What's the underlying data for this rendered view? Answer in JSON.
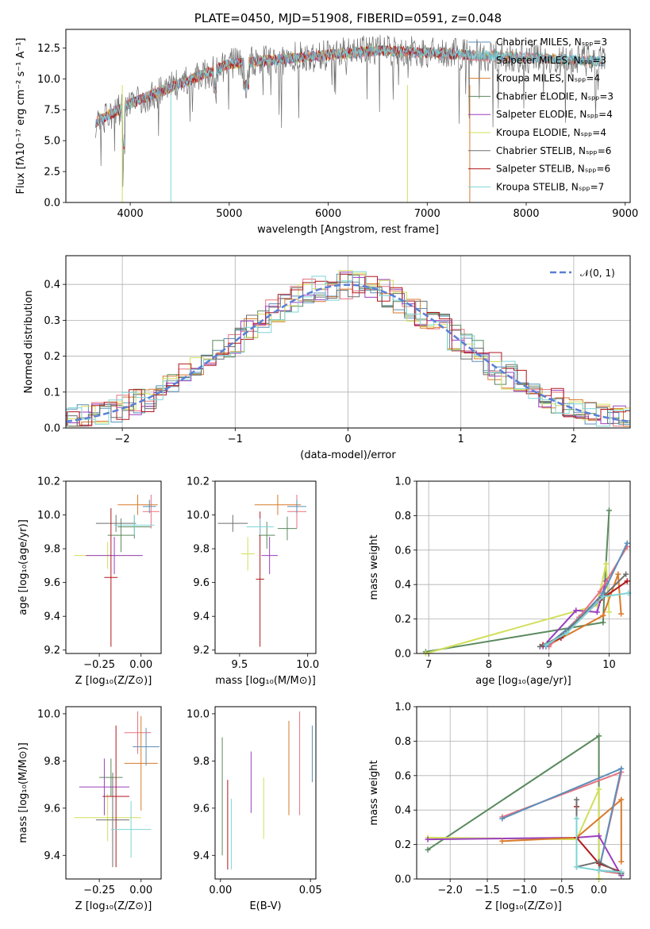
{
  "colors": {
    "c1": "#5b8fb9",
    "c2": "#e8727f",
    "c3": "#d97a2b",
    "c4": "#5a8a5e",
    "c5": "#9a3fbf",
    "c6": "#d2df5a",
    "c7": "#6e6e6e",
    "c8": "#b2161c",
    "c9": "#7ed4d6",
    "gauss": "#5a7fd6"
  },
  "chart_data": [
    {
      "id": "spectrum",
      "type": "line",
      "title": "PLATE=0450, MJD=51908, FIBERID=0591, z=0.048",
      "xlabel": "wavelength [Angstrom, rest frame]",
      "ylabel": "Flux [fλ10⁻¹⁷ erg cm⁻² s⁻¹ A⁻¹]",
      "xlim": [
        3350,
        9050
      ],
      "ylim": [
        0,
        14
      ],
      "xticks": [
        "4000",
        "5000",
        "6000",
        "7000",
        "8000",
        "9000"
      ],
      "yticks": [
        "0.0",
        "2.5",
        "5.0",
        "7.5",
        "10.0",
        "12.5"
      ],
      "legend_position": "right",
      "legend": [
        "Chabrier MILES, Nₛₚₚ=3",
        "Salpeter MILES, Nₛₚₚ=3",
        "Kroupa MILES, Nₛₚₚ=4",
        "Chabrier ELODIE, Nₛₚₚ=3",
        "Salpeter ELODIE, Nₛₚₚ=4",
        "Kroupa ELODIE, Nₛₚₚ=4",
        "Chabrier STELIB, Nₛₚₚ=6",
        "Salpeter STELIB, Nₛₚₚ=6",
        "Kroupa STELIB, Nₛₚₚ=7"
      ],
      "series_colors": [
        "c1",
        "c2",
        "c3",
        "c4",
        "c5",
        "c6",
        "c7",
        "c8",
        "c9"
      ]
    },
    {
      "id": "residuals",
      "type": "histogram",
      "xlabel": "(data-model)/error",
      "ylabel": "Normed distribution",
      "xlim": [
        -2.5,
        2.5
      ],
      "ylim": [
        0,
        0.48
      ],
      "xticks": [
        "−2",
        "−1",
        "0",
        "1",
        "2"
      ],
      "yticks": [
        "0.0",
        "0.1",
        "0.2",
        "0.3",
        "0.4"
      ],
      "legend": [
        "𝒩(0, 1)"
      ],
      "legend_position": "top-right",
      "grid": true
    },
    {
      "id": "age-vs-z",
      "type": "errorbar",
      "xlabel": "Z [log₁₀(Z/Z⊙)]",
      "ylabel": "age  [log₁₀(age/yr)]",
      "xlim": [
        -0.45,
        0.12
      ],
      "ylim": [
        9.18,
        10.2
      ],
      "xticks": [
        "−0.25",
        "0.00"
      ],
      "yticks": [
        "9.2",
        "9.4",
        "9.6",
        "9.8",
        "10.0",
        "10.2"
      ],
      "points": [
        {
          "x": -0.04,
          "xerr": 0.1,
          "y": 9.93,
          "yerr": 0.07,
          "c": "c4"
        },
        {
          "x": 0.06,
          "xerr": 0.05,
          "y": 10.02,
          "yerr": 0.1,
          "c": "c2"
        },
        {
          "x": -0.02,
          "xerr": 0.12,
          "y": 10.06,
          "yerr": 0.06,
          "c": "c3"
        },
        {
          "x": -0.12,
          "xerr": 0.08,
          "y": 9.88,
          "yerr": 0.1,
          "c": "c4"
        },
        {
          "x": -0.2,
          "xerr": 0.2,
          "y": 9.76,
          "yerr": 0.08,
          "c": "c6"
        },
        {
          "x": -0.16,
          "xerr": 0.17,
          "y": 9.76,
          "yerr": 0.11,
          "c": "c5"
        },
        {
          "x": -0.15,
          "xerr": 0.12,
          "y": 9.95,
          "yerr": 0.05,
          "c": "c7"
        },
        {
          "x": -0.18,
          "xerr": 0.04,
          "y": 9.63,
          "yerr": 0.41,
          "c": "c8"
        },
        {
          "x": -0.04,
          "xerr": 0.12,
          "y": 9.94,
          "yerr": 0.06,
          "c": "c9"
        },
        {
          "x": 0.05,
          "xerr": 0.04,
          "y": 10.05,
          "yerr": 0.04,
          "c": "c1"
        }
      ]
    },
    {
      "id": "age-vs-mass",
      "type": "errorbar",
      "xlabel": "mass [log₁₀(M/M⊙)]",
      "ylabel": "",
      "xlim": [
        9.32,
        10.06
      ],
      "ylim": [
        9.18,
        10.2
      ],
      "xticks": [
        "9.5",
        "10.0"
      ],
      "yticks": [
        "9.2",
        "9.4",
        "9.6",
        "9.8",
        "10.0",
        "10.2"
      ],
      "points": [
        {
          "x": 9.85,
          "xerr": 0.07,
          "y": 9.92,
          "yerr": 0.07,
          "c": "c4"
        },
        {
          "x": 9.92,
          "xerr": 0.07,
          "y": 10.02,
          "yerr": 0.1,
          "c": "c2"
        },
        {
          "x": 9.78,
          "xerr": 0.17,
          "y": 10.06,
          "yerr": 0.06,
          "c": "c3"
        },
        {
          "x": 9.7,
          "xerr": 0.06,
          "y": 9.88,
          "yerr": 0.08,
          "c": "c4"
        },
        {
          "x": 9.56,
          "xerr": 0.05,
          "y": 9.77,
          "yerr": 0.1,
          "c": "c6"
        },
        {
          "x": 9.72,
          "xerr": 0.06,
          "y": 9.76,
          "yerr": 0.11,
          "c": "c5"
        },
        {
          "x": 9.45,
          "xerr": 0.11,
          "y": 9.95,
          "yerr": 0.05,
          "c": "c7"
        },
        {
          "x": 9.65,
          "xerr": 0.03,
          "y": 9.62,
          "yerr": 0.4,
          "c": "c8"
        },
        {
          "x": 9.65,
          "xerr": 0.1,
          "y": 9.93,
          "yerr": 0.05,
          "c": "c9"
        },
        {
          "x": 9.92,
          "xerr": 0.07,
          "y": 10.05,
          "yerr": 0.04,
          "c": "c1"
        }
      ]
    },
    {
      "id": "weight-vs-age",
      "type": "line",
      "xlabel": "age  [log₁₀(age/yr)]",
      "ylabel": "mass weight",
      "xlim": [
        6.8,
        10.35
      ],
      "ylim": [
        0,
        1.0
      ],
      "xticks": [
        "7",
        "8",
        "9",
        "10"
      ],
      "yticks": [
        "0.0",
        "0.2",
        "0.4",
        "0.6",
        "0.8",
        "1.0"
      ],
      "grid": true,
      "series": [
        {
          "c": "c4",
          "x": [
            6.95,
            9.9,
            9.92,
            10.0
          ],
          "y": [
            0.01,
            0.18,
            0.35,
            0.83
          ]
        },
        {
          "c": "c6",
          "x": [
            6.95,
            9.8,
            9.95,
            10.0
          ],
          "y": [
            0.0,
            0.28,
            0.52,
            0.24
          ]
        },
        {
          "c": "c5",
          "x": [
            8.9,
            9.45,
            9.8,
            9.95
          ],
          "y": [
            0.04,
            0.25,
            0.24,
            0.42
          ]
        },
        {
          "c": "c3",
          "x": [
            9.0,
            9.9,
            10.15,
            10.2
          ],
          "y": [
            0.05,
            0.22,
            0.46,
            0.23
          ]
        },
        {
          "c": "c2",
          "x": [
            9.0,
            9.5,
            9.85,
            10.3
          ],
          "y": [
            0.04,
            0.21,
            0.36,
            0.62
          ]
        },
        {
          "c": "c1",
          "x": [
            8.95,
            9.5,
            9.9,
            10.3
          ],
          "y": [
            0.04,
            0.2,
            0.35,
            0.64
          ]
        },
        {
          "c": "c8",
          "x": [
            8.9,
            9.2,
            9.85,
            10.3
          ],
          "y": [
            0.05,
            0.09,
            0.31,
            0.42
          ]
        },
        {
          "c": "c7",
          "x": [
            8.85,
            9.2,
            9.9,
            10.28
          ],
          "y": [
            0.04,
            0.1,
            0.33,
            0.46
          ]
        },
        {
          "c": "c9",
          "x": [
            8.95,
            9.3,
            9.9,
            10.32
          ],
          "y": [
            0.05,
            0.12,
            0.33,
            0.35
          ]
        }
      ]
    },
    {
      "id": "mass-vs-z",
      "type": "errorbar",
      "xlabel": "Z [log₁₀(Z/Z⊙)]",
      "ylabel": "mass [log₁₀(M/M⊙)]",
      "xlim": [
        -0.45,
        0.12
      ],
      "ylim": [
        9.3,
        10.03
      ],
      "xticks": [
        "−0.25",
        "0.00"
      ],
      "yticks": [
        "9.4",
        "9.6",
        "9.8",
        "10.0"
      ],
      "points": [
        {
          "x": -0.02,
          "xerr": 0.08,
          "y": 9.92,
          "yerr": 0.09,
          "c": "c2"
        },
        {
          "x": 0.0,
          "xerr": 0.1,
          "y": 9.79,
          "yerr": 0.2,
          "c": "c3"
        },
        {
          "x": 0.03,
          "xerr": 0.08,
          "y": 9.86,
          "yerr": 0.08,
          "c": "c1"
        },
        {
          "x": -0.18,
          "xerr": 0.07,
          "y": 9.73,
          "yerr": 0.08,
          "c": "c4"
        },
        {
          "x": -0.22,
          "xerr": 0.15,
          "y": 9.69,
          "yerr": 0.12,
          "c": "c5"
        },
        {
          "x": -0.2,
          "xerr": 0.2,
          "y": 9.56,
          "yerr": 0.1,
          "c": "c6"
        },
        {
          "x": -0.17,
          "xerr": 0.1,
          "y": 9.55,
          "yerr": 0.2,
          "c": "c7"
        },
        {
          "x": -0.15,
          "xerr": 0.08,
          "y": 9.65,
          "yerr": 0.3,
          "c": "c8"
        },
        {
          "x": -0.06,
          "xerr": 0.12,
          "y": 9.51,
          "yerr": 0.12,
          "c": "c9"
        }
      ]
    },
    {
      "id": "mass-vs-ebv",
      "type": "errorbar",
      "xlabel": "E(B-V)",
      "ylabel": "",
      "xlim": [
        -0.003,
        0.053
      ],
      "ylim": [
        9.3,
        10.03
      ],
      "xticks": [
        "0.00",
        "0.05"
      ],
      "yticks": [
        "9.4",
        "9.6",
        "9.8",
        "10.0"
      ],
      "points": [
        {
          "x": 0.001,
          "xerr": 0.0,
          "y": 9.65,
          "yerr": 0.25,
          "c": "c4"
        },
        {
          "x": 0.004,
          "xerr": 0.0,
          "y": 9.53,
          "yerr": 0.19,
          "c": "c8"
        },
        {
          "x": 0.006,
          "xerr": 0.0,
          "y": 9.49,
          "yerr": 0.15,
          "c": "c9"
        },
        {
          "x": 0.017,
          "xerr": 0.0,
          "y": 9.71,
          "yerr": 0.13,
          "c": "c5"
        },
        {
          "x": 0.024,
          "xerr": 0.0,
          "y": 9.6,
          "yerr": 0.13,
          "c": "c6"
        },
        {
          "x": 0.038,
          "xerr": 0.0,
          "y": 9.77,
          "yerr": 0.2,
          "c": "c3"
        },
        {
          "x": 0.044,
          "xerr": 0.0,
          "y": 9.79,
          "yerr": 0.22,
          "c": "c2"
        },
        {
          "x": 0.051,
          "xerr": 0.0,
          "y": 9.83,
          "yerr": 0.12,
          "c": "c1"
        }
      ]
    },
    {
      "id": "weight-vs-z",
      "type": "line",
      "xlabel": "Z [log₁₀(Z/Z⊙)]",
      "ylabel": "mass weight",
      "xlim": [
        -2.45,
        0.42
      ],
      "ylim": [
        0,
        1.0
      ],
      "xticks": [
        "−2.0",
        "−1.5",
        "−1.0",
        "−0.5",
        "0.0"
      ],
      "yticks": [
        "0.0",
        "0.2",
        "0.4",
        "0.6",
        "0.8",
        "1.0"
      ],
      "grid": true,
      "series": [
        {
          "c": "c4",
          "x": [
            -2.3,
            0.0,
            0.0,
            0.3
          ],
          "y": [
            0.17,
            0.83,
            0.05,
            0.03
          ]
        },
        {
          "c": "c6",
          "x": [
            -2.3,
            -0.3,
            0.0,
            0.0
          ],
          "y": [
            0.24,
            0.23,
            0.52,
            0.0
          ]
        },
        {
          "c": "c5",
          "x": [
            -2.3,
            -0.3,
            0.0,
            0.3
          ],
          "y": [
            0.23,
            0.24,
            0.25,
            0.02
          ]
        },
        {
          "c": "c3",
          "x": [
            -1.3,
            -0.3,
            0.3,
            0.3
          ],
          "y": [
            0.22,
            0.24,
            0.46,
            0.1
          ]
        },
        {
          "c": "c2",
          "x": [
            -1.3,
            0.3,
            0.0,
            0.3
          ],
          "y": [
            0.36,
            0.62,
            0.05,
            0.03
          ]
        },
        {
          "c": "c1",
          "x": [
            -1.3,
            0.3,
            0.0,
            0.3
          ],
          "y": [
            0.35,
            0.64,
            0.05,
            0.04
          ]
        },
        {
          "c": "c8",
          "x": [
            -0.3,
            -0.3,
            0.0,
            0.3
          ],
          "y": [
            0.42,
            0.24,
            0.09,
            0.04
          ]
        },
        {
          "c": "c7",
          "x": [
            -0.3,
            -0.3,
            0.0,
            0.3
          ],
          "y": [
            0.46,
            0.07,
            0.1,
            0.03
          ]
        },
        {
          "c": "c9",
          "x": [
            -0.3,
            -0.3,
            0.0,
            0.3
          ],
          "y": [
            0.35,
            0.07,
            0.05,
            0.04
          ]
        }
      ]
    }
  ]
}
